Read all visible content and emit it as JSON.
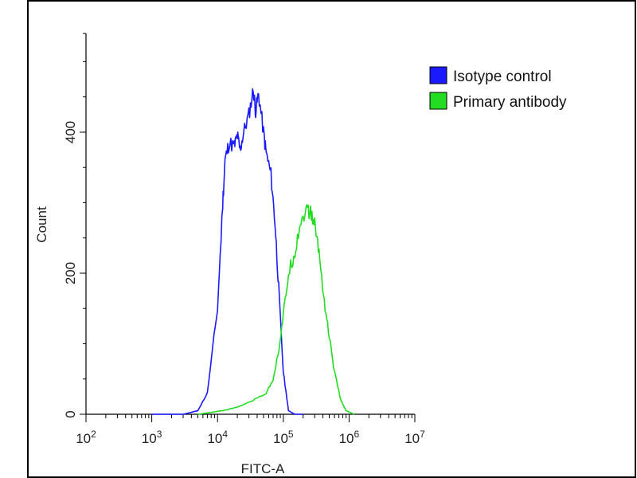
{
  "chart_data": {
    "type": "line",
    "title": "",
    "xlabel": "FITC-A",
    "ylabel": "Count",
    "x_scale": "log",
    "xlim": [
      100,
      10000000
    ],
    "ylim": [
      0,
      540
    ],
    "x_ticks": [
      {
        "value": 100,
        "base": "10",
        "exp": "2"
      },
      {
        "value": 1000,
        "base": "10",
        "exp": "3"
      },
      {
        "value": 10000,
        "base": "10",
        "exp": "4"
      },
      {
        "value": 100000,
        "base": "10",
        "exp": "5"
      },
      {
        "value": 1000000,
        "base": "10",
        "exp": "6"
      },
      {
        "value": 10000000,
        "base": "10",
        "exp": "7"
      }
    ],
    "y_ticks": [
      {
        "value": 0,
        "label": "0"
      },
      {
        "value": 200,
        "label": "200"
      },
      {
        "value": 400,
        "label": "400"
      }
    ],
    "y_minor_ticks": [
      0,
      50,
      100,
      150,
      200,
      250,
      300,
      350,
      400,
      450,
      500,
      540
    ],
    "grid": false,
    "legend_position": "right",
    "series": [
      {
        "name": "Isotype control",
        "color": "#1a1aff",
        "points": [
          [
            1000,
            0
          ],
          [
            3000,
            0
          ],
          [
            5000,
            5
          ],
          [
            7000,
            30
          ],
          [
            10000,
            150
          ],
          [
            12000,
            300
          ],
          [
            13000,
            360
          ],
          [
            15000,
            385
          ],
          [
            18000,
            380
          ],
          [
            20000,
            395
          ],
          [
            22000,
            375
          ],
          [
            25000,
            400
          ],
          [
            30000,
            425
          ],
          [
            35000,
            460
          ],
          [
            38000,
            430
          ],
          [
            42000,
            455
          ],
          [
            50000,
            400
          ],
          [
            55000,
            370
          ],
          [
            65000,
            340
          ],
          [
            75000,
            270
          ],
          [
            85000,
            180
          ],
          [
            100000,
            60
          ],
          [
            120000,
            5
          ],
          [
            150000,
            0
          ],
          [
            200000,
            0
          ]
        ]
      },
      {
        "name": "Primary antibody",
        "color": "#22dd22",
        "points": [
          [
            5000,
            0
          ],
          [
            12000,
            5
          ],
          [
            20000,
            10
          ],
          [
            35000,
            20
          ],
          [
            55000,
            30
          ],
          [
            70000,
            50
          ],
          [
            85000,
            90
          ],
          [
            100000,
            140
          ],
          [
            120000,
            200
          ],
          [
            150000,
            230
          ],
          [
            180000,
            270
          ],
          [
            220000,
            290
          ],
          [
            260000,
            285
          ],
          [
            300000,
            270
          ],
          [
            350000,
            230
          ],
          [
            420000,
            160
          ],
          [
            500000,
            110
          ],
          [
            600000,
            60
          ],
          [
            750000,
            20
          ],
          [
            900000,
            5
          ],
          [
            1200000,
            0
          ]
        ]
      }
    ]
  }
}
